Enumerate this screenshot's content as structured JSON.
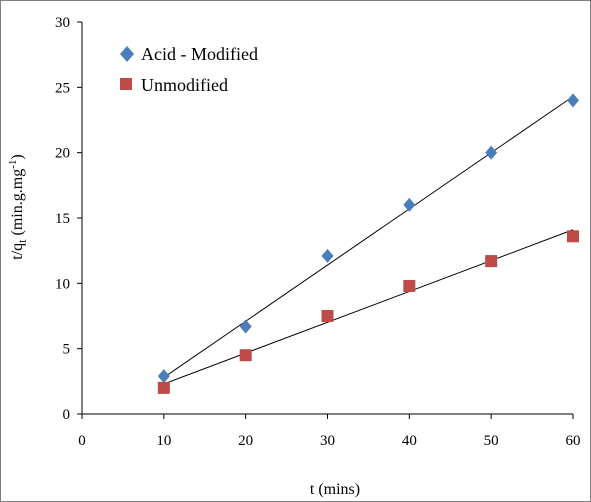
{
  "chart_data": {
    "type": "scatter",
    "title": "",
    "xlabel": "t (mins)",
    "ylabel": {
      "prefix": "t/q",
      "subscript": "t",
      "suffix": " (min.g.mg",
      "superscript": "-1",
      "close": ")"
    },
    "xlim": [
      0,
      60
    ],
    "ylim": [
      0,
      30
    ],
    "xticks": [
      0,
      10,
      20,
      30,
      40,
      50,
      60
    ],
    "yticks": [
      0,
      5,
      10,
      15,
      20,
      25,
      30
    ],
    "grid": false,
    "legend_position": "top-left",
    "series": [
      {
        "name": "Acid - Modified",
        "marker": "diamond",
        "color": "#4a7ebb",
        "x": [
          10,
          20,
          30,
          40,
          50,
          60
        ],
        "y": [
          2.9,
          6.7,
          12.1,
          16.0,
          20.0,
          24.0
        ],
        "trendline": {
          "x": [
            10,
            60
          ],
          "y": [
            2.8,
            24.3
          ]
        }
      },
      {
        "name": "Unmodified",
        "marker": "square",
        "color": "#be4b48",
        "x": [
          10,
          20,
          30,
          40,
          50,
          60
        ],
        "y": [
          2.0,
          4.5,
          7.5,
          9.8,
          11.7,
          13.6
        ],
        "trendline": {
          "x": [
            10,
            60
          ],
          "y": [
            2.3,
            14.1
          ]
        }
      }
    ]
  }
}
